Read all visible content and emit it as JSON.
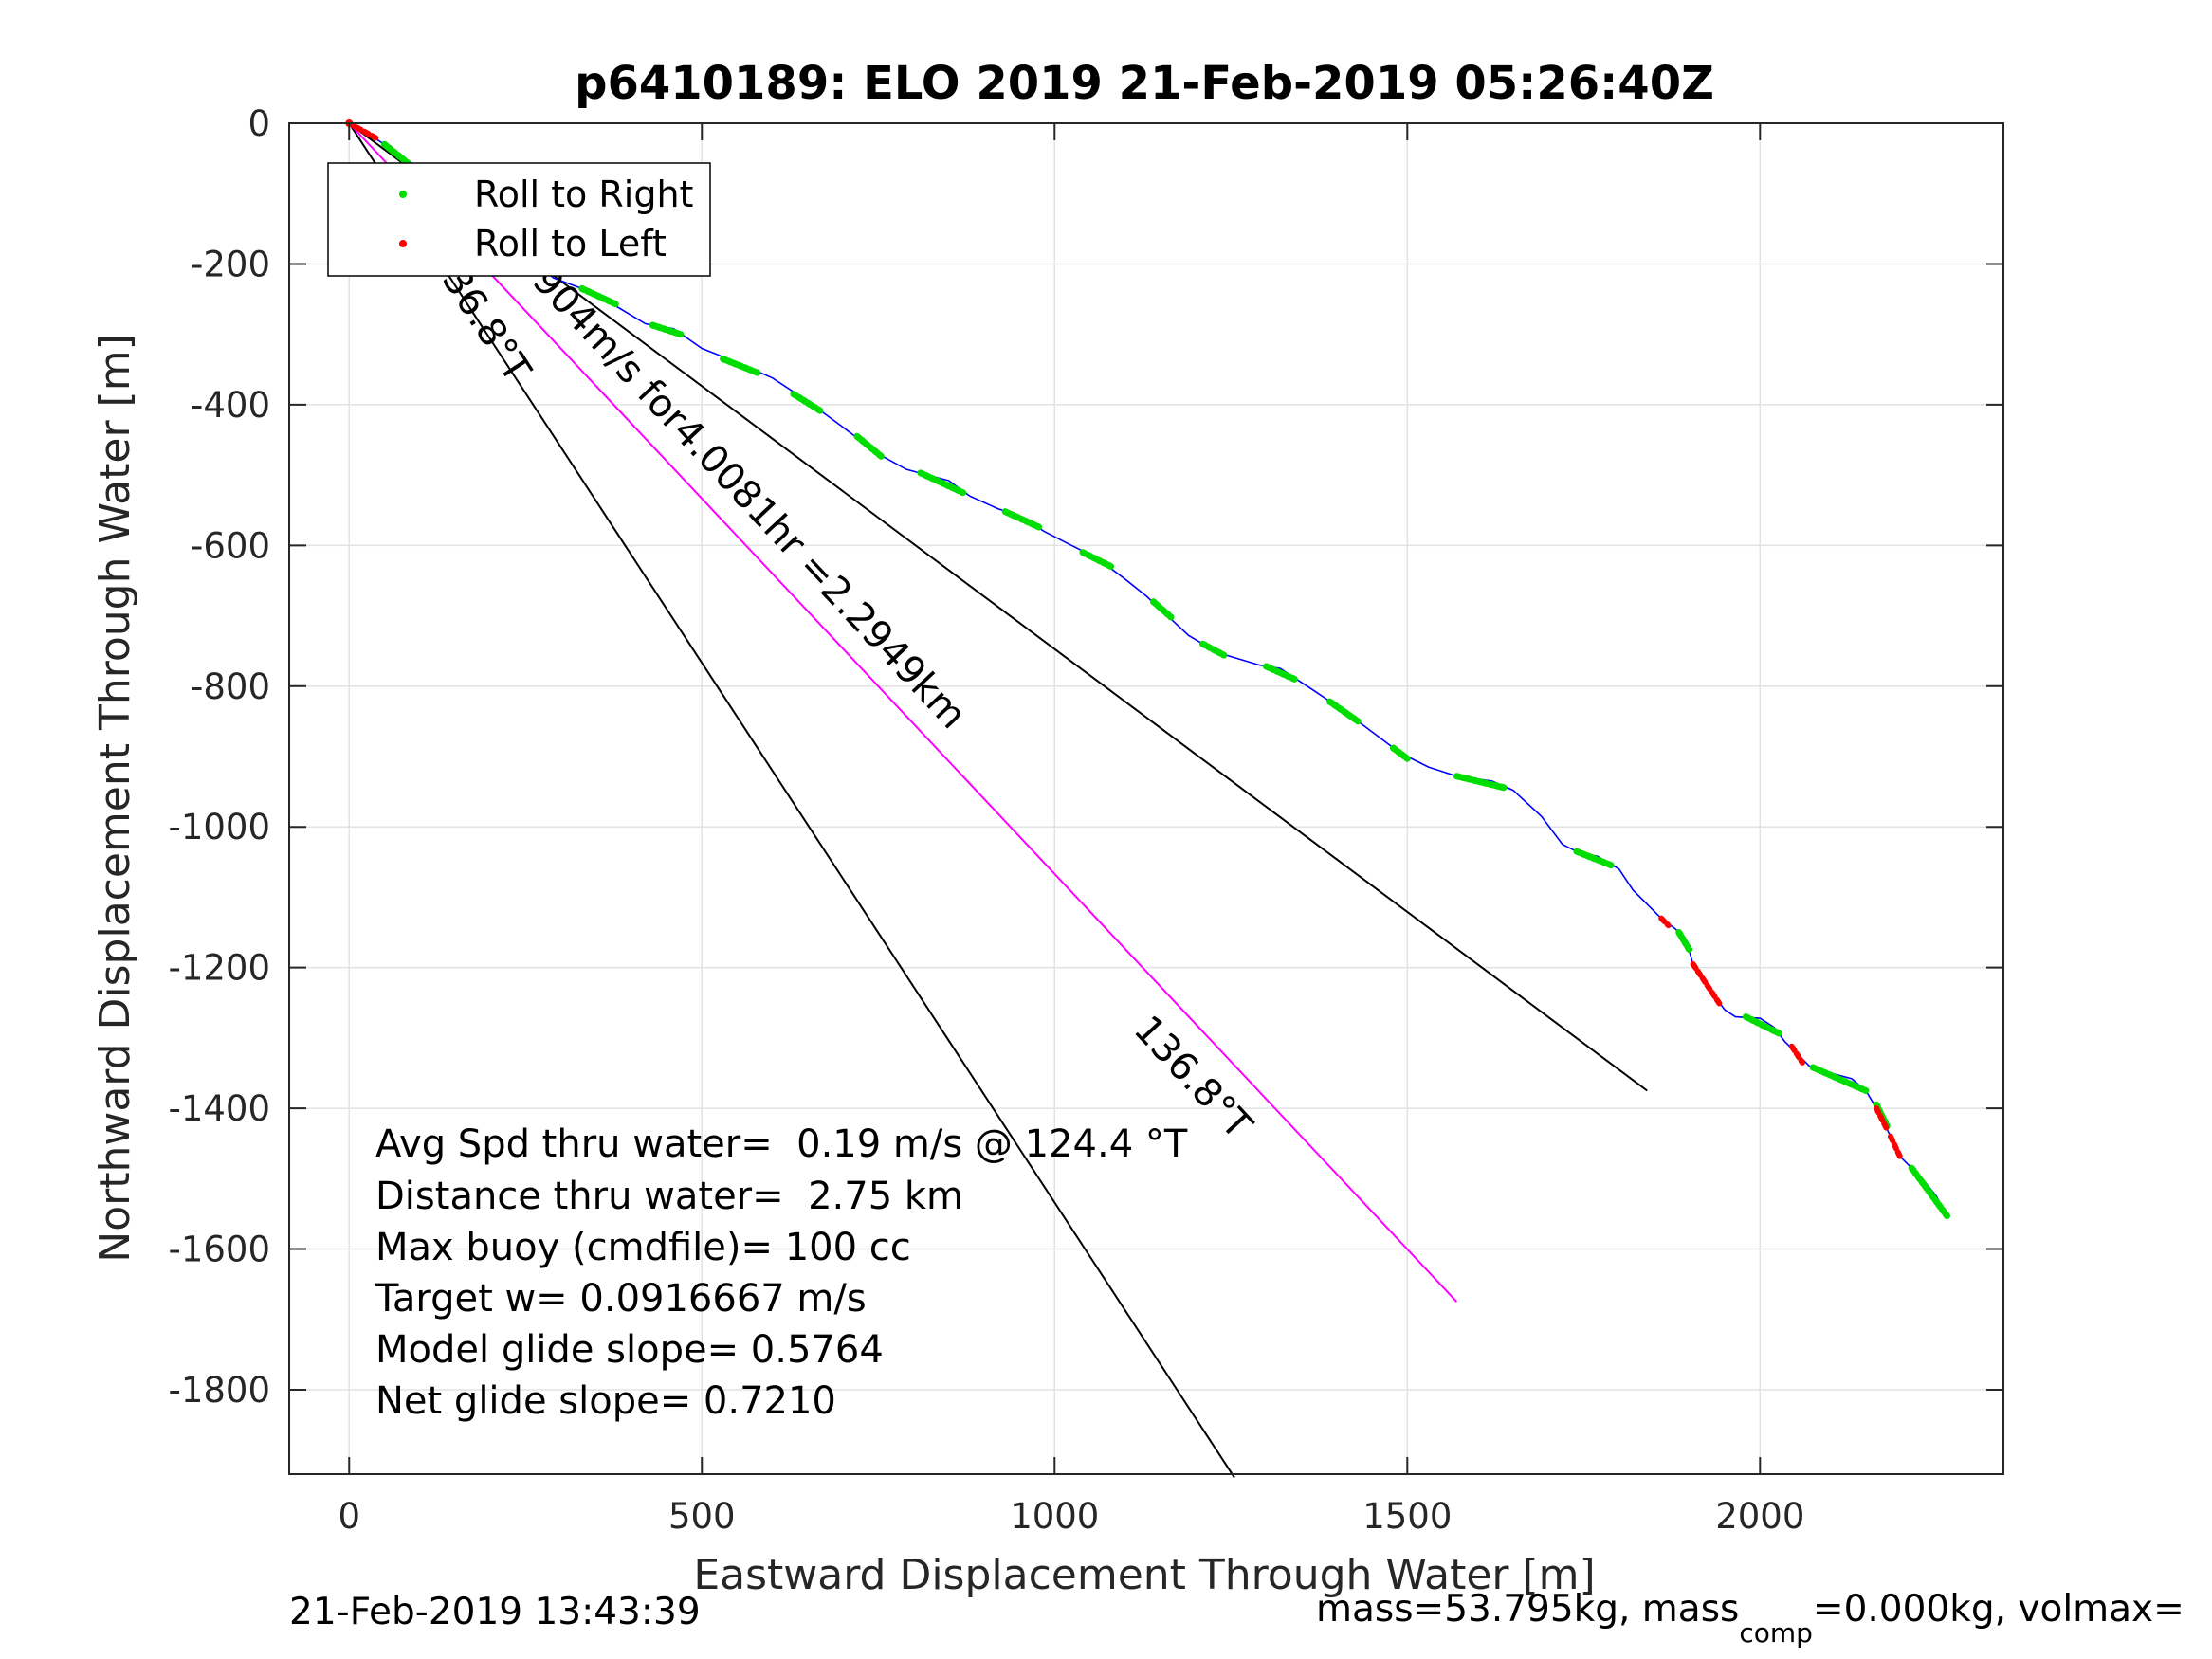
{
  "chart_data": {
    "type": "line",
    "title": "p6410189: ELO 2019 21-Feb-2019 05:26:40Z",
    "xlabel": "Eastward Displacement Through Water [m]",
    "ylabel": "Northward Displacement Through Water [m]",
    "xlim": [
      -85,
      2345
    ],
    "ylim": [
      -1920,
      0
    ],
    "xticks": [
      0,
      500,
      1000,
      1500,
      2000
    ],
    "yticks": [
      0,
      -200,
      -400,
      -600,
      -800,
      -1000,
      -1200,
      -1400,
      -1600,
      -1800
    ],
    "grid": true,
    "legend": {
      "placement": "top-left",
      "entries": [
        {
          "label": "Roll to Right",
          "color": "#00dd00"
        },
        {
          "label": "Roll to Left",
          "color": "#ff0000"
        }
      ]
    },
    "track": {
      "name": "glider track",
      "color": "#0000ff",
      "points": [
        [
          0,
          0
        ],
        [
          22,
          -12
        ],
        [
          50,
          -30
        ],
        [
          80,
          -55
        ],
        [
          110,
          -78
        ],
        [
          140,
          -100
        ],
        [
          170,
          -125
        ],
        [
          195,
          -145
        ],
        [
          220,
          -165
        ],
        [
          250,
          -190
        ],
        [
          290,
          -220
        ],
        [
          330,
          -235
        ],
        [
          370,
          -255
        ],
        [
          420,
          -285
        ],
        [
          460,
          -292
        ],
        [
          500,
          -320
        ],
        [
          550,
          -340
        ],
        [
          600,
          -362
        ],
        [
          650,
          -395
        ],
        [
          700,
          -432
        ],
        [
          750,
          -470
        ],
        [
          790,
          -492
        ],
        [
          820,
          -500
        ],
        [
          850,
          -508
        ],
        [
          880,
          -530
        ],
        [
          920,
          -548
        ],
        [
          950,
          -558
        ],
        [
          985,
          -580
        ],
        [
          1020,
          -598
        ],
        [
          1060,
          -618
        ],
        [
          1100,
          -648
        ],
        [
          1130,
          -672
        ],
        [
          1160,
          -700
        ],
        [
          1190,
          -728
        ],
        [
          1230,
          -752
        ],
        [
          1290,
          -770
        ],
        [
          1320,
          -775
        ],
        [
          1370,
          -808
        ],
        [
          1410,
          -835
        ],
        [
          1450,
          -865
        ],
        [
          1490,
          -895
        ],
        [
          1530,
          -915
        ],
        [
          1570,
          -928
        ],
        [
          1620,
          -935
        ],
        [
          1650,
          -948
        ],
        [
          1690,
          -985
        ],
        [
          1720,
          -1025
        ],
        [
          1740,
          -1035
        ],
        [
          1770,
          -1042
        ],
        [
          1800,
          -1060
        ],
        [
          1820,
          -1090
        ],
        [
          1845,
          -1115
        ],
        [
          1860,
          -1130
        ],
        [
          1880,
          -1145
        ],
        [
          1895,
          -1160
        ],
        [
          1905,
          -1195
        ],
        [
          1920,
          -1220
        ],
        [
          1935,
          -1240
        ],
        [
          1950,
          -1260
        ],
        [
          1965,
          -1270
        ],
        [
          2000,
          -1272
        ],
        [
          2020,
          -1285
        ],
        [
          2035,
          -1305
        ],
        [
          2050,
          -1320
        ],
        [
          2070,
          -1340
        ],
        [
          2100,
          -1350
        ],
        [
          2130,
          -1358
        ],
        [
          2150,
          -1375
        ],
        [
          2165,
          -1400
        ],
        [
          2175,
          -1420
        ],
        [
          2185,
          -1440
        ],
        [
          2200,
          -1470
        ],
        [
          2215,
          -1485
        ],
        [
          2230,
          -1500
        ],
        [
          2250,
          -1525
        ],
        [
          2265,
          -1553
        ]
      ]
    },
    "roll_right_segments": [
      [
        [
          50,
          -30
        ],
        [
          110,
          -78
        ]
      ],
      [
        [
          170,
          -125
        ],
        [
          200,
          -150
        ]
      ],
      [
        [
          330,
          -235
        ],
        [
          380,
          -258
        ]
      ],
      [
        [
          430,
          -287
        ],
        [
          470,
          -300
        ]
      ],
      [
        [
          530,
          -335
        ],
        [
          580,
          -355
        ]
      ],
      [
        [
          630,
          -385
        ],
        [
          670,
          -410
        ]
      ],
      [
        [
          720,
          -445
        ],
        [
          755,
          -474
        ]
      ],
      [
        [
          810,
          -497
        ],
        [
          870,
          -525
        ]
      ],
      [
        [
          930,
          -552
        ],
        [
          980,
          -575
        ]
      ],
      [
        [
          1040,
          -610
        ],
        [
          1080,
          -630
        ]
      ],
      [
        [
          1140,
          -680
        ],
        [
          1165,
          -702
        ]
      ],
      [
        [
          1210,
          -740
        ],
        [
          1240,
          -756
        ]
      ],
      [
        [
          1300,
          -772
        ],
        [
          1340,
          -790
        ]
      ],
      [
        [
          1390,
          -822
        ],
        [
          1430,
          -850
        ]
      ],
      [
        [
          1480,
          -888
        ],
        [
          1500,
          -903
        ]
      ],
      [
        [
          1570,
          -928
        ],
        [
          1640,
          -945
        ]
      ],
      [
        [
          1740,
          -1035
        ],
        [
          1790,
          -1055
        ]
      ],
      [
        [
          1885,
          -1150
        ],
        [
          1900,
          -1175
        ]
      ],
      [
        [
          1980,
          -1270
        ],
        [
          2030,
          -1295
        ]
      ],
      [
        [
          2075,
          -1342
        ],
        [
          2150,
          -1375
        ]
      ],
      [
        [
          2165,
          -1395
        ],
        [
          2180,
          -1425
        ]
      ],
      [
        [
          2215,
          -1485
        ],
        [
          2265,
          -1553
        ]
      ]
    ],
    "roll_left_segments": [
      [
        [
          0,
          0
        ],
        [
          40,
          -22
        ]
      ],
      [
        [
          1860,
          -1130
        ],
        [
          1870,
          -1140
        ]
      ],
      [
        [
          1905,
          -1195
        ],
        [
          1945,
          -1255
        ]
      ],
      [
        [
          2045,
          -1312
        ],
        [
          2060,
          -1335
        ]
      ],
      [
        [
          2165,
          -1400
        ],
        [
          2180,
          -1430
        ]
      ],
      [
        [
          2185,
          -1440
        ],
        [
          2200,
          -1472
        ]
      ]
    ],
    "lines": [
      {
        "name": "net",
        "color": "#000000",
        "x": [
          0,
          1840
        ],
        "y": [
          0,
          -1375
        ]
      },
      {
        "name": "heading",
        "color": "#000000",
        "x": [
          0,
          1255
        ],
        "y": [
          0,
          -1925
        ]
      },
      {
        "name": "current",
        "color": "#ff00ff",
        "x": [
          0,
          1570
        ],
        "y": [
          0,
          -1675
        ]
      }
    ],
    "rotated_labels": [
      {
        "text": "136.8°T",
        "x": 112,
        "y": -192,
        "angle": 57
      },
      {
        "text": "0.15904m/s for4.0081hr =2.2949km",
        "x": 176,
        "y": -138,
        "angle": 47
      },
      {
        "text": "136.8°T",
        "x": 1110,
        "y": -1290,
        "angle": 47
      }
    ],
    "annotations": [
      "Avg Spd thru water=  0.19 m/s @ 124.4 °T",
      "Distance thru water=  2.75 km",
      "Max buoy (cmdfile)= 100 cc",
      "Target w= 0.0916667 m/s",
      "Model glide slope= 0.5764",
      "Net glide slope= 0.7210"
    ]
  },
  "footer": {
    "timestamp": "21-Feb-2019 13:43:39",
    "mass_prefix": "mass=53.795kg, mass",
    "mass_sub": "comp",
    "mass_suffix": "=0.000kg, volmax="
  }
}
